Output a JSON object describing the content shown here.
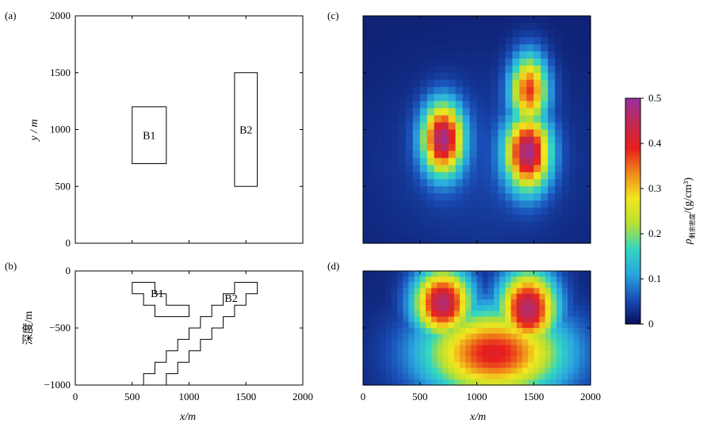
{
  "chart_data": [
    {
      "panel": "(a)",
      "type": "plan-view outline",
      "xlim": [
        0,
        2000
      ],
      "ylim": [
        0,
        2000
      ],
      "yticks": [
        "0",
        "500",
        "1000",
        "1500",
        "2000"
      ],
      "ylabel": "y / m",
      "blocks": [
        {
          "name": "B1",
          "x": [
            500,
            800
          ],
          "y": [
            700,
            1200
          ]
        },
        {
          "name": "B2",
          "x": [
            1400,
            1600
          ],
          "y": [
            500,
            1500
          ]
        }
      ]
    },
    {
      "panel": "(b)",
      "type": "cross-section outline",
      "xlim": [
        0,
        2000
      ],
      "ylim": [
        -1000,
        0
      ],
      "xticks": [
        "0",
        "500",
        "1000",
        "1500",
        "2000"
      ],
      "yticks": [
        "0",
        "−500",
        "−1000"
      ],
      "xlabel": "x/m",
      "ylabel": "深度/m",
      "blocks": [
        {
          "name": "B1",
          "polygon": [
            [
              500,
              -100
            ],
            [
              700,
              -100
            ],
            [
              700,
              -200
            ],
            [
              800,
              -200
            ],
            [
              800,
              -300
            ],
            [
              1000,
              -300
            ],
            [
              1000,
              -400
            ],
            [
              700,
              -400
            ],
            [
              700,
              -300
            ],
            [
              600,
              -300
            ],
            [
              600,
              -200
            ],
            [
              500,
              -200
            ]
          ]
        },
        {
          "name": "B2",
          "polygon": [
            [
              1400,
              -100
            ],
            [
              1600,
              -100
            ],
            [
              1600,
              -200
            ],
            [
              1500,
              -200
            ],
            [
              1500,
              -300
            ],
            [
              1400,
              -300
            ],
            [
              1400,
              -400
            ],
            [
              1300,
              -400
            ],
            [
              1300,
              -500
            ],
            [
              1200,
              -500
            ],
            [
              1200,
              -600
            ],
            [
              1100,
              -600
            ],
            [
              1100,
              -700
            ],
            [
              1000,
              -700
            ],
            [
              1000,
              -800
            ],
            [
              900,
              -800
            ],
            [
              900,
              -900
            ],
            [
              800,
              -900
            ],
            [
              800,
              -1000
            ],
            [
              600,
              -1000
            ],
            [
              600,
              -900
            ],
            [
              700,
              -900
            ],
            [
              700,
              -800
            ],
            [
              800,
              -800
            ],
            [
              800,
              -700
            ],
            [
              900,
              -700
            ],
            [
              900,
              -600
            ],
            [
              1000,
              -600
            ],
            [
              1000,
              -500
            ],
            [
              1100,
              -500
            ],
            [
              1100,
              -400
            ],
            [
              1200,
              -400
            ],
            [
              1200,
              -300
            ],
            [
              1300,
              -300
            ],
            [
              1300,
              -200
            ],
            [
              1400,
              -200
            ]
          ]
        }
      ]
    },
    {
      "panel": "(c)",
      "type": "heatmap",
      "xlim": [
        0,
        2000
      ],
      "ylim": [
        0,
        2000
      ],
      "blobs": [
        {
          "cx": 700,
          "cy": 920,
          "sx": 120,
          "sy": 210,
          "peak": 0.45
        },
        {
          "cx": 1450,
          "cy": 800,
          "sx": 130,
          "sy": 220,
          "peak": 0.45
        },
        {
          "cx": 1460,
          "cy": 1350,
          "sx": 110,
          "sy": 210,
          "peak": 0.35
        }
      ]
    },
    {
      "panel": "(d)",
      "type": "heatmap",
      "xlim": [
        0,
        2000
      ],
      "ylim": [
        -1000,
        0
      ],
      "xticks": [
        "0",
        "500",
        "1000",
        "1500",
        "2000"
      ],
      "xlabel": "x/m",
      "blobs": [
        {
          "cx": 700,
          "cy": -280,
          "sx": 170,
          "sy": 200,
          "peak": 0.45
        },
        {
          "cx": 1450,
          "cy": -330,
          "sx": 170,
          "sy": 220,
          "peak": 0.45
        },
        {
          "cx": 1150,
          "cy": -720,
          "sx": 420,
          "sy": 260,
          "peak": 0.38
        }
      ]
    }
  ],
  "colorbar": {
    "range": [
      0,
      0.5
    ],
    "ticks": [
      "0",
      "0.1",
      "0.2",
      "0.3",
      "0.4",
      "0.5"
    ],
    "stops": [
      "#0a0f5a",
      "#1a4fb8",
      "#2aa6e0",
      "#33d6c0",
      "#b8e032",
      "#f2e61f",
      "#f08a1a",
      "#e81e1e",
      "#c02a50",
      "#9a2fa2"
    ],
    "label": "ρ剩余密度/(g/cm³)"
  },
  "labels": {
    "panel_a": "(a)",
    "panel_b": "(b)",
    "panel_c": "(c)",
    "panel_d": "(d)",
    "a_ylabel": "y / m",
    "b_ylabel": "深度/m",
    "xlabel_b": "x/m",
    "xlabel_d": "x/m",
    "B1": "B1",
    "B2": "B2",
    "cbar_rho": "ρ",
    "cbar_sub": "剩余密度",
    "cbar_unit": "/(g/cm³)"
  }
}
